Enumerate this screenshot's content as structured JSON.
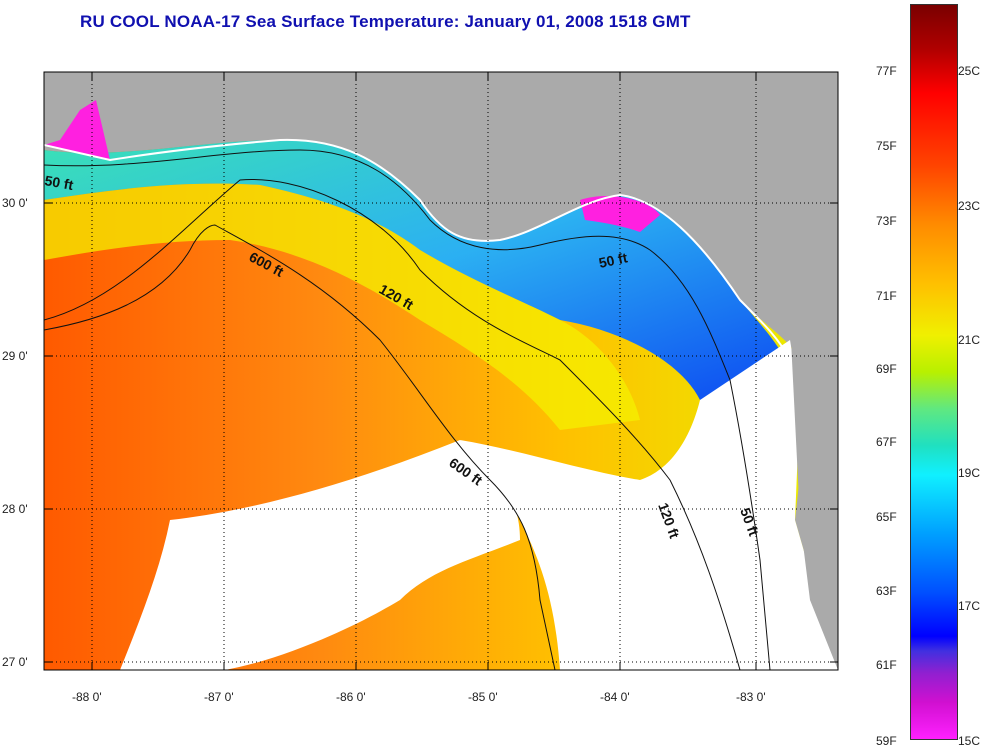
{
  "title": "RU COOL  NOAA-17  Sea Surface Temperature:  January 01, 2008 1518 GMT",
  "map": {
    "lat_labels": [
      "30 0'",
      "29 0'",
      "28 0'",
      "27 0'"
    ],
    "lon_labels": [
      "-88 0'",
      "-87 0'",
      "-86 0'",
      "-85 0'",
      "-84 0'",
      "-83 0'"
    ],
    "contour_labels": [
      "50 ft",
      "600 ft",
      "120 ft",
      "50 ft",
      "600 ft",
      "120 ft",
      "50 ft"
    ],
    "colors": {
      "land": "#aaaaaa",
      "no_data": "#ffffff"
    }
  },
  "colorbar": {
    "fahrenheit_labels": [
      "77F",
      "75F",
      "73F",
      "71F",
      "69F",
      "67F",
      "65F",
      "63F",
      "61F",
      "59F"
    ],
    "celsius_labels": [
      "25C",
      "23C",
      "21C",
      "19C",
      "17C",
      "15C"
    ]
  }
}
